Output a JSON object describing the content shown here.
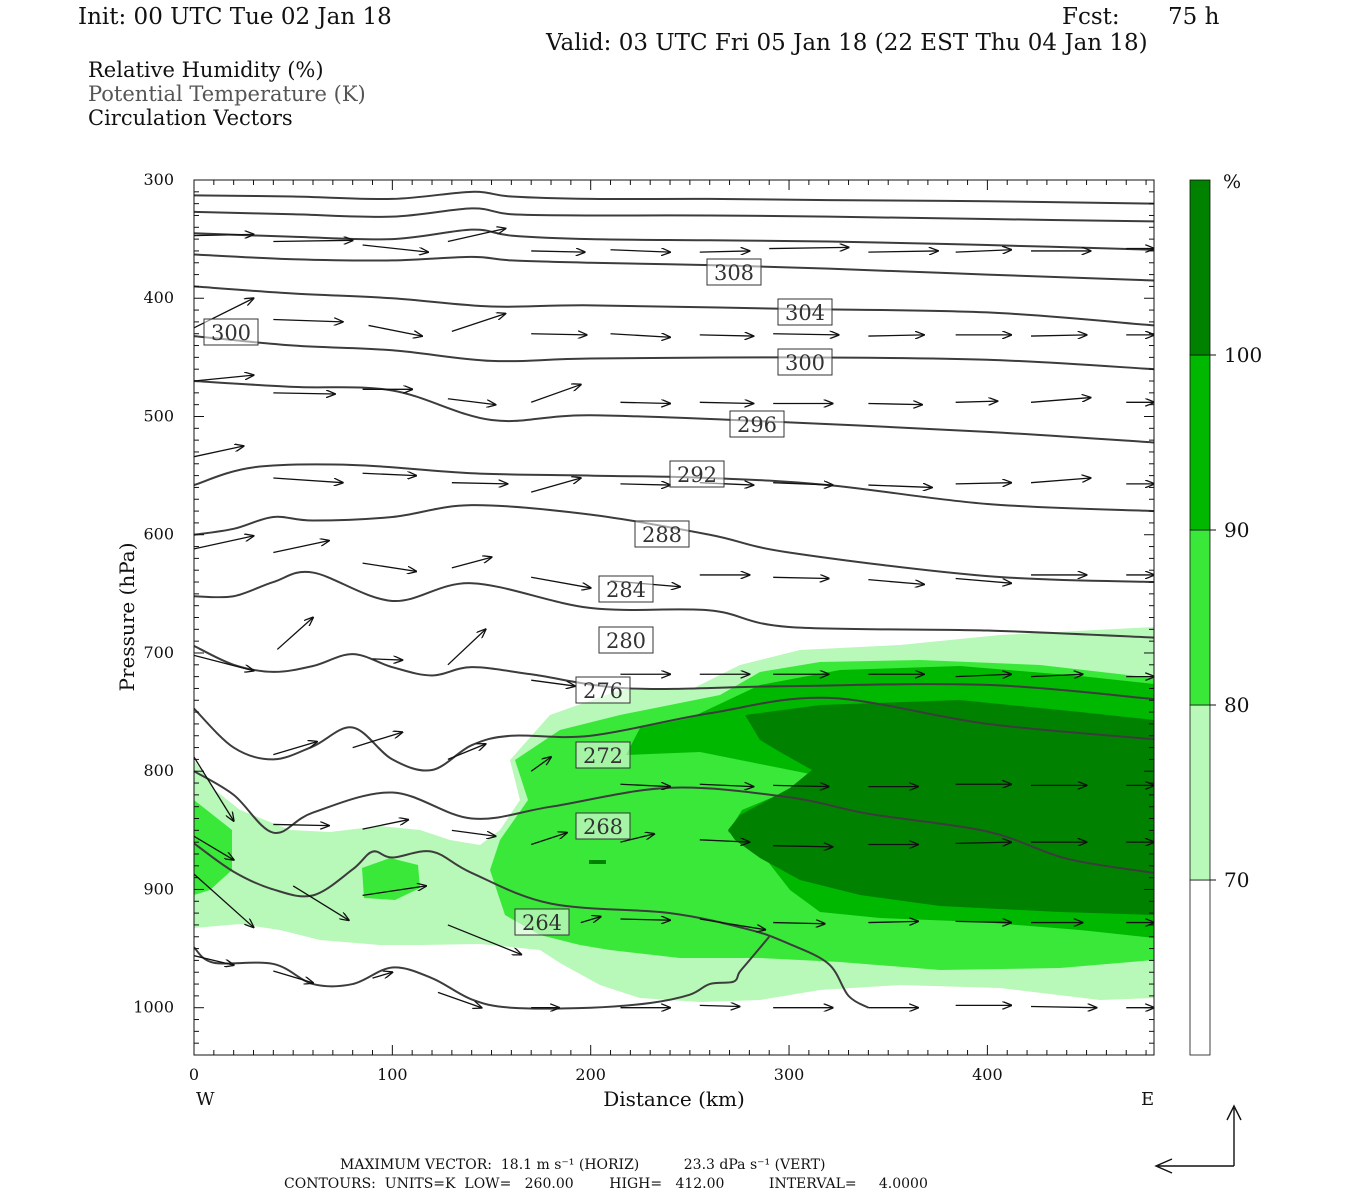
{
  "header": {
    "init": "Init: 00 UTC Tue 02 Jan 18",
    "fcst_label": "Fcst:",
    "fcst_value": "75 h",
    "valid": "Valid: 03 UTC Fri 05 Jan 18 (22 EST Thu 04 Jan 18)"
  },
  "fields": [
    {
      "label": "Relative Humidity (%)",
      "color": "#111111"
    },
    {
      "label": "Potential Temperature (K)",
      "color": "#555555"
    },
    {
      "label": "Circulation Vectors",
      "color": "#111111"
    }
  ],
  "footer": {
    "max_vector": "MAXIMUM VECTOR:  18.1 m s⁻¹ (HORIZ)          23.3 dPa s⁻¹ (VERT)",
    "contours": "CONTOURS:  UNITS=K  LOW=   260.00        HIGH=   412.00          INTERVAL=     4.0000"
  },
  "chart_data": {
    "type": "cross-section",
    "xlabel": "Distance (km)",
    "ylabel": "Pressure (hPa)",
    "x_ticks": [
      0,
      100,
      200,
      300,
      400
    ],
    "y_ticks": [
      300,
      400,
      500,
      600,
      700,
      800,
      900,
      1000
    ],
    "xlim": [
      0,
      484
    ],
    "ylim": [
      1040,
      300
    ],
    "x_end_labels": {
      "left": "W",
      "right": "E"
    },
    "colorbar": {
      "unit": "%",
      "levels": [
        70,
        80,
        90,
        100
      ],
      "colors": [
        "#ffffff",
        "#b8f8b8",
        "#3ae83a",
        "#00b800",
        "#008200"
      ]
    },
    "theta_contours": [
      {
        "value": 308,
        "label": "308",
        "x": [
          0,
          50,
          100,
          140,
          160,
          200,
          260,
          320,
          400,
          484
        ],
        "y": [
          313,
          314,
          316,
          310,
          314,
          316,
          316,
          317,
          318,
          320
        ]
      },
      {
        "value": null,
        "label": "",
        "x": [
          0,
          50,
          100,
          140,
          160,
          200,
          260,
          320,
          400,
          484
        ],
        "y": [
          327,
          329,
          331,
          324,
          329,
          330,
          330,
          331,
          333,
          335
        ]
      },
      {
        "value": null,
        "label": "",
        "x": [
          0,
          50,
          100,
          140,
          160,
          200,
          260,
          320,
          400,
          484
        ],
        "y": [
          345,
          348,
          350,
          342,
          347,
          350,
          351,
          352,
          355,
          359
        ]
      },
      {
        "value": null,
        "label": "",
        "x": [
          0,
          50,
          100,
          140,
          160,
          200,
          260,
          320,
          400,
          484
        ],
        "y": [
          363,
          367,
          368,
          365,
          368,
          370,
          372,
          375,
          380,
          385
        ]
      },
      {
        "value": 304,
        "label": "304",
        "x": [
          0,
          50,
          100,
          150,
          200,
          300,
          400,
          484
        ],
        "y": [
          390,
          396,
          400,
          407,
          406,
          409,
          412,
          423
        ]
      },
      {
        "value": 300,
        "label": "300",
        "x": [
          0,
          50,
          100,
          150,
          200,
          300,
          400,
          484
        ],
        "y": [
          432,
          440,
          444,
          453,
          451,
          450,
          452,
          460
        ]
      },
      {
        "value": 296,
        "label": "296",
        "x": [
          0,
          50,
          100,
          150,
          200,
          300,
          400,
          484
        ],
        "y": [
          470,
          475,
          478,
          503,
          499,
          505,
          513,
          522
        ]
      },
      {
        "value": 292,
        "label": "292",
        "x": [
          0,
          30,
          80,
          140,
          200,
          260,
          320,
          400,
          484
        ],
        "y": [
          558,
          543,
          541,
          548,
          550,
          552,
          558,
          574,
          580
        ]
      },
      {
        "value": 288,
        "label": "288",
        "x": [
          0,
          20,
          40,
          60,
          100,
          140,
          200,
          260,
          300,
          400,
          484
        ],
        "y": [
          600,
          595,
          585,
          588,
          585,
          575,
          583,
          600,
          615,
          635,
          640
        ]
      },
      {
        "value": 284,
        "label": "284",
        "x": [
          0,
          20,
          40,
          60,
          100,
          140,
          200,
          260,
          300,
          400,
          484
        ],
        "y": [
          652,
          652,
          640,
          632,
          656,
          641,
          662,
          664,
          678,
          681,
          687
        ]
      },
      {
        "value": 280,
        "label": "280",
        "x": [
          0,
          20,
          40,
          60,
          80,
          100,
          120,
          140,
          170,
          220,
          300,
          400,
          484
        ],
        "y": [
          694,
          710,
          716,
          711,
          701,
          712,
          719,
          712,
          718,
          730,
          728,
          727,
          739
        ]
      },
      {
        "value": 276,
        "label": "276",
        "x": [
          0,
          20,
          40,
          60,
          80,
          100,
          120,
          140,
          160,
          200,
          260,
          320,
          400,
          484
        ],
        "y": [
          747,
          780,
          790,
          779,
          763,
          790,
          799,
          778,
          770,
          770,
          751,
          738,
          760,
          773
        ]
      },
      {
        "value": 272,
        "label": "272",
        "x": [
          0,
          20,
          40,
          60,
          100,
          140,
          180,
          240,
          300,
          340,
          400,
          440,
          484
        ],
        "y": [
          800,
          820,
          852,
          835,
          818,
          840,
          830,
          814,
          822,
          836,
          851,
          874,
          886
        ]
      },
      {
        "value": 268,
        "label": "268",
        "x": [
          0,
          20,
          40,
          60,
          80,
          90,
          100,
          120,
          140,
          180,
          240,
          280,
          300,
          320,
          330,
          340
        ],
        "y": [
          861,
          885,
          900,
          905,
          883,
          868,
          873,
          868,
          886,
          912,
          920,
          934,
          946,
          963,
          990,
          1000
        ]
      },
      {
        "value": 264,
        "label": "264",
        "x": [
          0,
          10,
          40,
          60,
          80,
          100,
          120,
          140,
          160,
          200,
          230,
          250,
          260,
          272,
          275,
          280,
          290
        ],
        "y": [
          949,
          962,
          963,
          980,
          980,
          966,
          975,
          993,
          1000,
          1000,
          996,
          989,
          980,
          978,
          970,
          960,
          940
        ]
      }
    ],
    "rh_regions": [
      {
        "level": 70,
        "note": "moist layer below ~720 hPa east of ~150 km and near surface west"
      },
      {
        "level": 80,
        "note": "core from ~170 km eastward, 740–960 hPa"
      },
      {
        "level": 90,
        "note": "core from ~210 km eastward, 730–930 hPa"
      }
    ],
    "vectors": [
      [
        0,
        347,
        30,
        346
      ],
      [
        40,
        352,
        80,
        351
      ],
      [
        85,
        355,
        118,
        361
      ],
      [
        128,
        352,
        157,
        341
      ],
      [
        170,
        360,
        197,
        361
      ],
      [
        210,
        359,
        240,
        361
      ],
      [
        255,
        361,
        280,
        360
      ],
      [
        290,
        358,
        330,
        357
      ],
      [
        340,
        361,
        375,
        360
      ],
      [
        384,
        361,
        412,
        359
      ],
      [
        422,
        360,
        452,
        360
      ],
      [
        470,
        358,
        484,
        358
      ],
      [
        0,
        425,
        30,
        400
      ],
      [
        40,
        418,
        75,
        420
      ],
      [
        88,
        423,
        115,
        432
      ],
      [
        130,
        428,
        157,
        413
      ],
      [
        170,
        430,
        198,
        431
      ],
      [
        210,
        430,
        240,
        433
      ],
      [
        255,
        431,
        282,
        432
      ],
      [
        292,
        430,
        325,
        431
      ],
      [
        340,
        432,
        368,
        431
      ],
      [
        384,
        431,
        412,
        431
      ],
      [
        422,
        432,
        450,
        431
      ],
      [
        470,
        431,
        484,
        431
      ],
      [
        0,
        470,
        30,
        465
      ],
      [
        40,
        480,
        71,
        481
      ],
      [
        85,
        477,
        110,
        477
      ],
      [
        128,
        485,
        152,
        490
      ],
      [
        170,
        488,
        195,
        473
      ],
      [
        215,
        488,
        240,
        489
      ],
      [
        255,
        488,
        282,
        489
      ],
      [
        292,
        489,
        322,
        489
      ],
      [
        340,
        489,
        367,
        490
      ],
      [
        384,
        488,
        405,
        487
      ],
      [
        422,
        488,
        452,
        484
      ],
      [
        470,
        488,
        484,
        488
      ],
      [
        0,
        534,
        25,
        525
      ],
      [
        40,
        552,
        75,
        556
      ],
      [
        85,
        548,
        112,
        550
      ],
      [
        130,
        556,
        158,
        557
      ],
      [
        170,
        564,
        195,
        552
      ],
      [
        215,
        557,
        240,
        558
      ],
      [
        255,
        556,
        282,
        558
      ],
      [
        292,
        556,
        322,
        558
      ],
      [
        340,
        558,
        372,
        560
      ],
      [
        384,
        557,
        412,
        556
      ],
      [
        422,
        556,
        452,
        552
      ],
      [
        470,
        557,
        484,
        557
      ],
      [
        0,
        612,
        30,
        601
      ],
      [
        40,
        615,
        68,
        605
      ],
      [
        85,
        624,
        112,
        631
      ],
      [
        130,
        628,
        150,
        619
      ],
      [
        170,
        636,
        200,
        645
      ],
      [
        210,
        639,
        245,
        644
      ],
      [
        255,
        634,
        280,
        634
      ],
      [
        292,
        636,
        320,
        637
      ],
      [
        340,
        638,
        368,
        642
      ],
      [
        384,
        637,
        412,
        641
      ],
      [
        422,
        634,
        450,
        634
      ],
      [
        470,
        634,
        484,
        634
      ],
      [
        0,
        702,
        30,
        715
      ],
      [
        42,
        697,
        60,
        670
      ],
      [
        90,
        705,
        105,
        706
      ],
      [
        128,
        710,
        147,
        680
      ],
      [
        170,
        723,
        192,
        728
      ],
      [
        215,
        718,
        240,
        718
      ],
      [
        255,
        718,
        280,
        718
      ],
      [
        292,
        718,
        320,
        718
      ],
      [
        340,
        718,
        368,
        718
      ],
      [
        384,
        720,
        412,
        718
      ],
      [
        422,
        720,
        448,
        718
      ],
      [
        470,
        720,
        484,
        720
      ],
      [
        0,
        788,
        20,
        842
      ],
      [
        40,
        786,
        62,
        775
      ],
      [
        80,
        780,
        105,
        767
      ],
      [
        128,
        790,
        147,
        777
      ],
      [
        170,
        800,
        180,
        788
      ],
      [
        215,
        811,
        240,
        813
      ],
      [
        255,
        811,
        282,
        813
      ],
      [
        292,
        812,
        320,
        813
      ],
      [
        340,
        813,
        365,
        813
      ],
      [
        384,
        811,
        412,
        811
      ],
      [
        422,
        812,
        450,
        812
      ],
      [
        470,
        812,
        484,
        812
      ],
      [
        0,
        855,
        20,
        875
      ],
      [
        40,
        845,
        68,
        846
      ],
      [
        85,
        849,
        108,
        841
      ],
      [
        130,
        850,
        152,
        855
      ],
      [
        170,
        862,
        188,
        852
      ],
      [
        215,
        860,
        232,
        853
      ],
      [
        255,
        858,
        280,
        860
      ],
      [
        292,
        863,
        322,
        864
      ],
      [
        340,
        862,
        365,
        862
      ],
      [
        384,
        861,
        412,
        860
      ],
      [
        422,
        860,
        450,
        860
      ],
      [
        470,
        860,
        484,
        860
      ],
      [
        0,
        887,
        30,
        932
      ],
      [
        50,
        897,
        78,
        926
      ],
      [
        85,
        905,
        117,
        897
      ],
      [
        128,
        930,
        165,
        955
      ],
      [
        195,
        928,
        205,
        923
      ],
      [
        215,
        925,
        240,
        926
      ],
      [
        255,
        925,
        288,
        934
      ],
      [
        292,
        928,
        318,
        929
      ],
      [
        340,
        928,
        365,
        927
      ],
      [
        384,
        927,
        412,
        928
      ],
      [
        422,
        928,
        448,
        928
      ],
      [
        470,
        928,
        484,
        928
      ],
      [
        0,
        956,
        20,
        964
      ],
      [
        40,
        969,
        60,
        979
      ],
      [
        90,
        975,
        100,
        970
      ],
      [
        123,
        987,
        145,
        1000
      ],
      [
        170,
        1000,
        184,
        1000
      ],
      [
        215,
        1000,
        240,
        1000
      ],
      [
        255,
        998,
        275,
        999
      ],
      [
        292,
        1000,
        322,
        1000
      ],
      [
        340,
        1000,
        365,
        1000
      ],
      [
        384,
        998,
        412,
        998
      ],
      [
        422,
        999,
        455,
        1000
      ],
      [
        470,
        1000,
        484,
        1000
      ]
    ]
  }
}
